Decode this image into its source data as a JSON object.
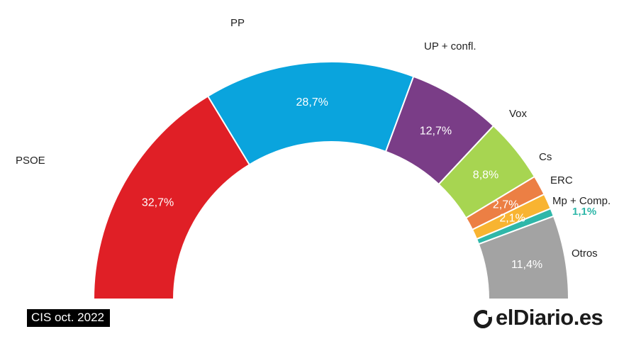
{
  "chart_data": {
    "type": "pie",
    "subtype": "semicircle-hemicycle",
    "series": [
      {
        "name": "PSOE",
        "value": 32.7,
        "label": "32,7%",
        "color": "#e01f26"
      },
      {
        "name": "PP",
        "value": 28.7,
        "label": "28,7%",
        "color": "#0aa4dd"
      },
      {
        "name": "UP + confl.",
        "value": 12.7,
        "label": "12,7%",
        "color": "#7a3d87"
      },
      {
        "name": "Vox",
        "value": 8.8,
        "label": "8,8%",
        "color": "#a7d551"
      },
      {
        "name": "Cs",
        "value": 2.7,
        "label": "2,7%",
        "color": "#ec7f44"
      },
      {
        "name": "ERC",
        "value": 2.1,
        "label": "2,1%",
        "color": "#f8b431"
      },
      {
        "name": "Mp + Comp.",
        "value": 1.1,
        "label": "1,1%",
        "color": "#2fb7a9"
      },
      {
        "name": "Otros",
        "value": 11.4,
        "label": "11,4%",
        "color": "#a3a3a3"
      }
    ]
  },
  "source_label": "CIS oct. 2022",
  "brand_label": "elDiario.es"
}
